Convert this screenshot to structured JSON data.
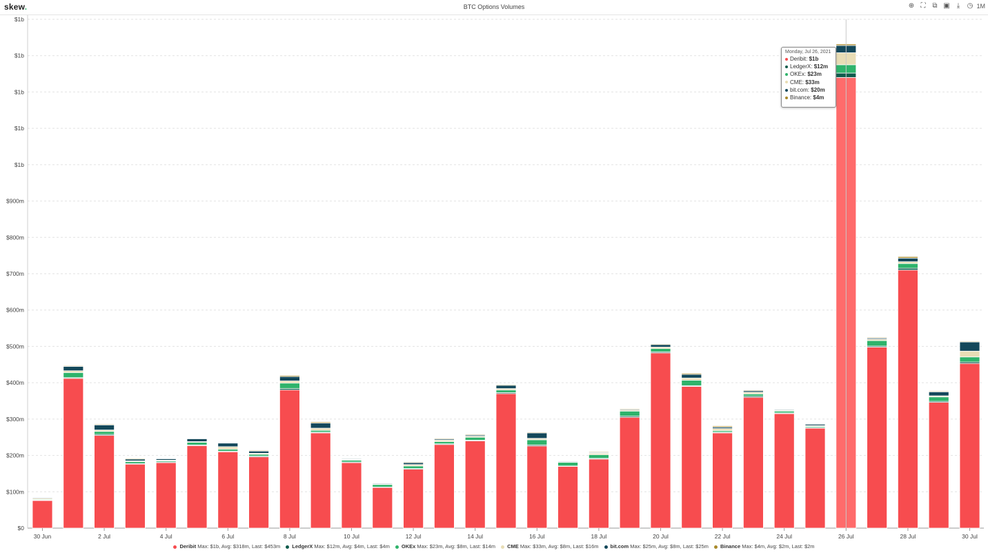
{
  "header": {
    "logo": "skew",
    "logo_dot": ".",
    "title": "BTC Options Volumes",
    "timeframe": "1M",
    "icons": [
      "zoom-icon",
      "fullscreen-icon",
      "copy-icon",
      "camera-icon",
      "download-icon",
      "clock-icon"
    ]
  },
  "colors": {
    "Deribit": "#f74c4f",
    "LedgerX": "#0f5b4c",
    "OKEx": "#2fb36b",
    "CME": "#e8ddb5",
    "bit.com": "#14485a",
    "Binance": "#a98a2b",
    "highlight": "#ff6b6b"
  },
  "legend": [
    {
      "name": "Deribit",
      "stats": "Max: $1b, Avg: $318m, Last: $453m"
    },
    {
      "name": "LedgerX",
      "stats": "Max: $12m, Avg: $4m, Last: $4m"
    },
    {
      "name": "OKEx",
      "stats": "Max: $23m, Avg: $8m, Last: $14m"
    },
    {
      "name": "CME",
      "stats": "Max: $33m, Avg: $8m, Last: $16m"
    },
    {
      "name": "bit.com",
      "stats": "Max: $25m, Avg: $8m, Last: $25m"
    },
    {
      "name": "Binance",
      "stats": "Max: $4m, Avg: $2m, Last: $2m"
    }
  ],
  "tooltip": {
    "date": "Monday, Jul 26, 2021",
    "rows": [
      {
        "name": "Deribit",
        "value": "$1b"
      },
      {
        "name": "LedgerX",
        "value": "$12m"
      },
      {
        "name": "OKEx",
        "value": "$23m"
      },
      {
        "name": "CME",
        "value": "$33m"
      },
      {
        "name": "bit.com",
        "value": "$20m"
      },
      {
        "name": "Binance",
        "value": "$4m"
      }
    ]
  },
  "chart_data": {
    "type": "bar",
    "stacked": true,
    "title": "BTC Options Volumes",
    "ylim": [
      0,
      1400
    ],
    "y_unit": "$m",
    "y_ticks": [
      {
        "value": 0,
        "label": "$0"
      },
      {
        "value": 100,
        "label": "$100m"
      },
      {
        "value": 200,
        "label": "$200m"
      },
      {
        "value": 300,
        "label": "$300m"
      },
      {
        "value": 400,
        "label": "$400m"
      },
      {
        "value": 500,
        "label": "$500m"
      },
      {
        "value": 600,
        "label": "$600m"
      },
      {
        "value": 700,
        "label": "$700m"
      },
      {
        "value": 800,
        "label": "$800m"
      },
      {
        "value": 900,
        "label": "$900m"
      },
      {
        "value": 1000,
        "label": "$1b"
      },
      {
        "value": 1100,
        "label": "$1b"
      },
      {
        "value": 1200,
        "label": "$1b"
      },
      {
        "value": 1300,
        "label": "$1b"
      },
      {
        "value": 1400,
        "label": "$1b"
      }
    ],
    "categories": [
      "2021-06-30",
      "2021-07-01",
      "2021-07-02",
      "2021-07-03",
      "2021-07-04",
      "2021-07-05",
      "2021-07-06",
      "2021-07-07",
      "2021-07-08",
      "2021-07-09",
      "2021-07-10",
      "2021-07-11",
      "2021-07-12",
      "2021-07-13",
      "2021-07-14",
      "2021-07-15",
      "2021-07-16",
      "2021-07-17",
      "2021-07-18",
      "2021-07-19",
      "2021-07-20",
      "2021-07-21",
      "2021-07-22",
      "2021-07-23",
      "2021-07-24",
      "2021-07-25",
      "2021-07-26",
      "2021-07-27",
      "2021-07-28",
      "2021-07-29",
      "2021-07-30"
    ],
    "x_tick_labels": [
      {
        "index": 0,
        "label": "30 Jun"
      },
      {
        "index": 2,
        "label": "2 Jul"
      },
      {
        "index": 4,
        "label": "4 Jul"
      },
      {
        "index": 6,
        "label": "6 Jul"
      },
      {
        "index": 8,
        "label": "8 Jul"
      },
      {
        "index": 10,
        "label": "10 Jul"
      },
      {
        "index": 12,
        "label": "12 Jul"
      },
      {
        "index": 14,
        "label": "14 Jul"
      },
      {
        "index": 16,
        "label": "16 Jul"
      },
      {
        "index": 18,
        "label": "18 Jul"
      },
      {
        "index": 20,
        "label": "20 Jul"
      },
      {
        "index": 22,
        "label": "22 Jul"
      },
      {
        "index": 24,
        "label": "24 Jul"
      },
      {
        "index": 26,
        "label": "26 Jul"
      },
      {
        "index": 28,
        "label": "28 Jul"
      },
      {
        "index": 30,
        "label": "30 Jul"
      }
    ],
    "highlight_index": 26,
    "series": [
      {
        "name": "Deribit",
        "values": [
          76,
          412,
          255,
          176,
          180,
          227,
          210,
          196,
          380,
          262,
          180,
          112,
          162,
          230,
          240,
          370,
          226,
          170,
          190,
          305,
          482,
          390,
          262,
          360,
          315,
          275,
          1240,
          498,
          710,
          346,
          453
        ]
      },
      {
        "name": "LedgerX",
        "values": [
          1,
          2,
          3,
          2,
          2,
          2,
          2,
          2,
          4,
          2,
          2,
          1,
          2,
          2,
          2,
          3,
          3,
          1,
          2,
          3,
          3,
          2,
          2,
          3,
          2,
          2,
          12,
          3,
          5,
          3,
          4
        ]
      },
      {
        "name": "OKEx",
        "values": [
          2,
          14,
          8,
          5,
          3,
          7,
          5,
          5,
          15,
          5,
          5,
          7,
          7,
          6,
          8,
          7,
          14,
          10,
          10,
          14,
          9,
          15,
          4,
          6,
          5,
          3,
          23,
          15,
          13,
          12,
          14
        ]
      },
      {
        "name": "CME",
        "values": [
          3,
          5,
          4,
          2,
          2,
          2,
          7,
          3,
          6,
          6,
          2,
          1,
          4,
          4,
          3,
          4,
          4,
          1,
          4,
          3,
          4,
          6,
          6,
          5,
          2,
          2,
          33,
          4,
          5,
          3,
          16
        ]
      },
      {
        "name": "bit.com",
        "values": [
          2,
          12,
          14,
          5,
          4,
          8,
          10,
          6,
          12,
          14,
          2,
          2,
          5,
          3,
          3,
          9,
          15,
          2,
          2,
          2,
          7,
          10,
          4,
          4,
          2,
          4,
          20,
          3,
          10,
          11,
          25
        ]
      },
      {
        "name": "Binance",
        "values": [
          1,
          2,
          2,
          2,
          1,
          1,
          1,
          2,
          3,
          3,
          1,
          1,
          2,
          2,
          2,
          2,
          2,
          1,
          2,
          2,
          2,
          3,
          3,
          2,
          1,
          1,
          4,
          2,
          4,
          2,
          2
        ]
      }
    ]
  }
}
